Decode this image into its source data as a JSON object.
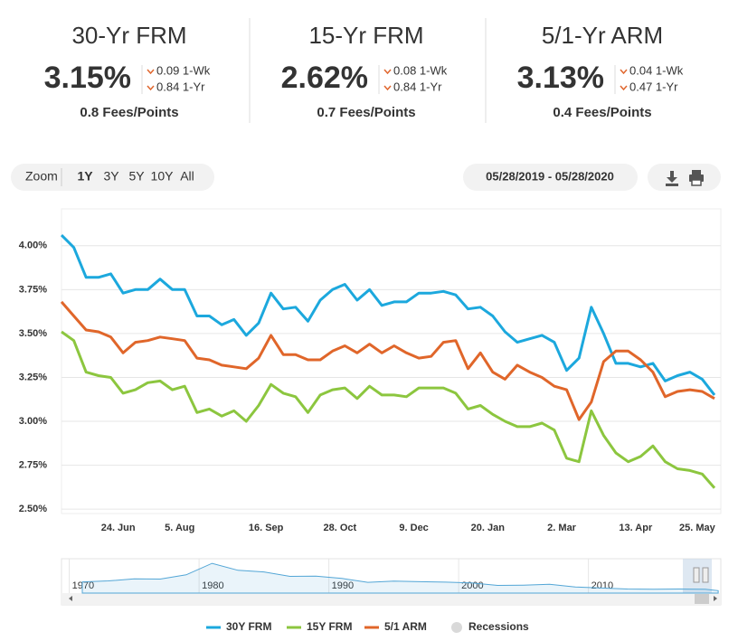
{
  "rates": [
    {
      "title": "30-Yr FRM",
      "rate": "3.15%",
      "week": "0.09 1-Wk",
      "year": "0.84 1-Yr",
      "fees": "0.8 Fees/Points",
      "color": "#2ea3dc"
    },
    {
      "title": "15-Yr FRM",
      "rate": "2.62%",
      "week": "0.08 1-Wk",
      "year": "0.84 1-Yr",
      "fees": "0.7 Fees/Points",
      "color": "#8cc43f"
    },
    {
      "title": "5/1-Yr ARM",
      "rate": "3.13%",
      "week": "0.04 1-Wk",
      "year": "0.47 1-Yr",
      "fees": "0.4 Fees/Points",
      "color": "#e0662d"
    }
  ],
  "zoom": {
    "label": "Zoom",
    "buttons": [
      "1Y",
      "3Y",
      "5Y",
      "10Y",
      "All"
    ],
    "selected": "1Y"
  },
  "date_range": "05/28/2019 - 05/28/2020",
  "chart_data": [
    {
      "type": "line",
      "categories": [
        null,
        null,
        null,
        null,
        null,
        "24. Jun",
        null,
        null,
        null,
        null,
        "5. Aug",
        null,
        null,
        null,
        null,
        null,
        null,
        "16. Sep",
        null,
        null,
        null,
        null,
        null,
        "28. Oct",
        null,
        null,
        null,
        null,
        null,
        "9. Dec",
        null,
        null,
        null,
        null,
        null,
        "20. Jan",
        null,
        null,
        null,
        null,
        null,
        "2. Mar",
        null,
        null,
        null,
        null,
        null,
        "13. Apr",
        null,
        null,
        null,
        null,
        "25. May",
        null
      ],
      "series": [
        {
          "name": "30Y FRM",
          "color": "#1ca8dd",
          "values": [
            4.06,
            3.99,
            3.82,
            3.82,
            3.84,
            3.73,
            3.75,
            3.75,
            3.81,
            3.75,
            3.75,
            3.6,
            3.6,
            3.55,
            3.58,
            3.49,
            3.56,
            3.73,
            3.64,
            3.65,
            3.57,
            3.69,
            3.75,
            3.78,
            3.69,
            3.75,
            3.66,
            3.68,
            3.68,
            3.73,
            3.73,
            3.74,
            3.72,
            3.64,
            3.65,
            3.6,
            3.51,
            3.45,
            3.47,
            3.49,
            3.45,
            3.29,
            3.36,
            3.65,
            3.5,
            3.33,
            3.33,
            3.31,
            3.33,
            3.23,
            3.26,
            3.28,
            3.24,
            3.15
          ]
        },
        {
          "name": "15Y FRM",
          "color": "#8cc63f",
          "values": [
            3.51,
            3.46,
            3.28,
            3.26,
            3.25,
            3.16,
            3.18,
            3.22,
            3.23,
            3.18,
            3.2,
            3.05,
            3.07,
            3.03,
            3.06,
            3.0,
            3.09,
            3.21,
            3.16,
            3.14,
            3.05,
            3.15,
            3.18,
            3.19,
            3.13,
            3.2,
            3.15,
            3.15,
            3.14,
            3.19,
            3.19,
            3.19,
            3.16,
            3.07,
            3.09,
            3.04,
            3.0,
            2.97,
            2.97,
            2.99,
            2.95,
            2.79,
            2.77,
            3.06,
            2.92,
            2.82,
            2.77,
            2.8,
            2.86,
            2.77,
            2.73,
            2.72,
            2.7,
            2.62
          ]
        },
        {
          "name": "5/1 ARM",
          "color": "#e0662a",
          "values": [
            3.68,
            3.6,
            3.52,
            3.51,
            3.48,
            3.39,
            3.45,
            3.46,
            3.48,
            3.47,
            3.46,
            3.36,
            3.35,
            3.32,
            3.31,
            3.3,
            3.36,
            3.49,
            3.38,
            3.38,
            3.35,
            3.35,
            3.4,
            3.43,
            3.39,
            3.44,
            3.39,
            3.43,
            3.39,
            3.36,
            3.37,
            3.45,
            3.46,
            3.3,
            3.39,
            3.28,
            3.24,
            3.32,
            3.28,
            3.25,
            3.2,
            3.18,
            3.01,
            3.11,
            3.34,
            3.4,
            3.4,
            3.35,
            3.28,
            3.14,
            3.17,
            3.18,
            3.17,
            3.13
          ]
        }
      ],
      "ylim": [
        2.475,
        4.21
      ],
      "yticks": [
        {
          "value": 2.5,
          "label": "2.50%"
        },
        {
          "value": 2.75,
          "label": "2.75%"
        },
        {
          "value": 3,
          "label": "3.00%"
        },
        {
          "value": 3.25,
          "label": "3.25%"
        },
        {
          "value": 3.5,
          "label": "3.50%"
        },
        {
          "value": 3.75,
          "label": "3.75%"
        },
        {
          "value": 4,
          "label": "4.00%"
        }
      ],
      "grid": true,
      "legend": "bottom",
      "recessions": {
        "name": "Recessions",
        "color": "#d9d9d9"
      }
    },
    {
      "type": "area",
      "color": "#53a6d6",
      "x": [
        1971,
        1973,
        1975,
        1977,
        1979,
        1981,
        1983,
        1985,
        1987,
        1989,
        1991,
        1993,
        1995,
        1997,
        1999,
        2001,
        2003,
        2005,
        2007,
        2009,
        2011,
        2013,
        2015,
        2017,
        2019,
        2020
      ],
      "values": [
        7.5,
        8.0,
        9.0,
        8.9,
        11.0,
        16.6,
        13.2,
        12.4,
        10.2,
        10.3,
        9.2,
        7.3,
        7.9,
        7.6,
        7.4,
        7.0,
        5.8,
        5.9,
        6.3,
        5.0,
        4.5,
        4.0,
        3.9,
        4.0,
        3.9,
        3.2
      ],
      "xlim": [
        1969.4,
        2020.2
      ],
      "ylim": [
        2,
        18
      ],
      "xticks": [
        1970,
        1980,
        1990,
        2000,
        2010
      ]
    }
  ]
}
